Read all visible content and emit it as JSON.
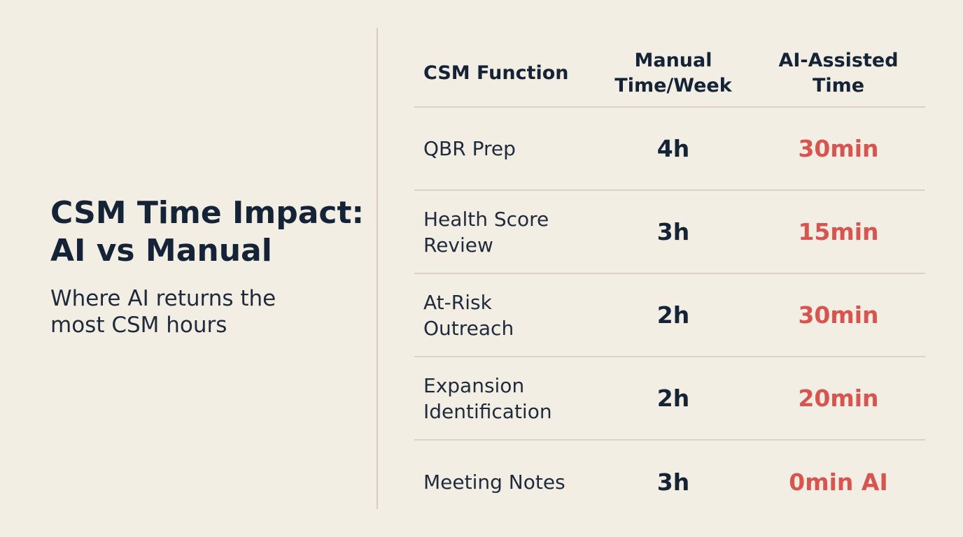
{
  "header": {
    "title_line1": "CSM Time Impact:",
    "title_line2": "AI vs Manual",
    "subtitle_line1": "Where AI returns the",
    "subtitle_line2": "most CSM hours"
  },
  "colors": {
    "background": "#f3eee3",
    "text": "#152336",
    "ai_value": "#d9534f",
    "divider": "#d8ccb8"
  },
  "chart_data": {
    "type": "table",
    "columns": [
      [
        "CSM Function"
      ],
      [
        "Manual",
        "Time/Week"
      ],
      [
        "AI-Assisted",
        "Time"
      ]
    ],
    "rows": [
      {
        "function": [
          "QBR Prep"
        ],
        "manual": "4h",
        "ai": "30min"
      },
      {
        "function": [
          "Health Score",
          "Review"
        ],
        "manual": "3h",
        "ai": "15min"
      },
      {
        "function": [
          "At-Risk",
          "Outreach"
        ],
        "manual": "2h",
        "ai": "30min"
      },
      {
        "function": [
          "Expansion",
          "Identification"
        ],
        "manual": "2h",
        "ai": "20min"
      },
      {
        "function": [
          "Meeting Notes"
        ],
        "manual": "3h",
        "ai": "0min AI"
      }
    ]
  }
}
